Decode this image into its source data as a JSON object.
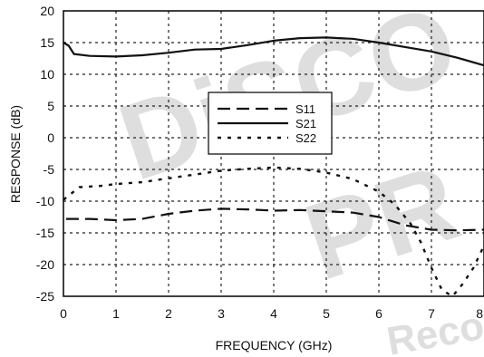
{
  "watermark": {
    "text_1": "DiSCO",
    "text_2": "PR",
    "text_3": "Reco"
  },
  "chart_data": {
    "type": "line",
    "xlabel": "FREQUENCY (GHz)",
    "ylabel": "RESPONSE (dB)",
    "xlim": [
      0,
      8
    ],
    "ylim": [
      -25,
      20
    ],
    "x_ticks": [
      "0",
      "1",
      "2",
      "3",
      "4",
      "5",
      "6",
      "7",
      "8"
    ],
    "y_ticks": [
      "20",
      "15",
      "10",
      "5",
      "0",
      "-5",
      "-10",
      "-15",
      "-20",
      "-25"
    ],
    "grid": true,
    "legend_position": "center",
    "series": [
      {
        "name": "S11",
        "line_style": "long-dash",
        "x": [
          0.05,
          0.5,
          1.0,
          1.5,
          2.0,
          2.5,
          3.0,
          3.5,
          4.0,
          4.5,
          5.0,
          5.5,
          6.0,
          6.5,
          7.0,
          7.5,
          8.0
        ],
        "y": [
          -12.8,
          -12.8,
          -13.0,
          -12.8,
          -12.0,
          -11.5,
          -11.2,
          -11.3,
          -11.5,
          -11.4,
          -11.6,
          -11.8,
          -12.5,
          -13.8,
          -14.5,
          -14.6,
          -14.5
        ]
      },
      {
        "name": "S21",
        "line_style": "solid",
        "x": [
          0.0,
          0.1,
          0.2,
          0.5,
          1.0,
          1.5,
          2.0,
          2.5,
          3.0,
          3.5,
          4.0,
          4.5,
          5.0,
          5.5,
          6.0,
          6.5,
          7.0,
          7.5,
          8.0
        ],
        "y": [
          15.0,
          14.5,
          13.2,
          12.9,
          12.8,
          13.0,
          13.4,
          13.9,
          14.0,
          14.6,
          15.3,
          15.7,
          15.8,
          15.6,
          15.0,
          14.3,
          13.6,
          12.6,
          11.4
        ]
      },
      {
        "name": "S22",
        "line_style": "dotted",
        "x": [
          0.0,
          0.3,
          0.7,
          1.0,
          1.5,
          2.0,
          2.5,
          3.0,
          3.5,
          4.0,
          4.5,
          5.0,
          5.5,
          6.0,
          6.3,
          6.6,
          6.8,
          7.0,
          7.2,
          7.4,
          7.6,
          7.8,
          8.0
        ],
        "y": [
          -9.8,
          -7.8,
          -7.6,
          -7.3,
          -7.0,
          -6.4,
          -5.8,
          -5.2,
          -4.9,
          -4.7,
          -4.9,
          -5.5,
          -6.5,
          -8.5,
          -10.5,
          -13.5,
          -16.5,
          -20.5,
          -24.0,
          -25.0,
          -23.0,
          -20.5,
          -17.0
        ]
      }
    ]
  }
}
